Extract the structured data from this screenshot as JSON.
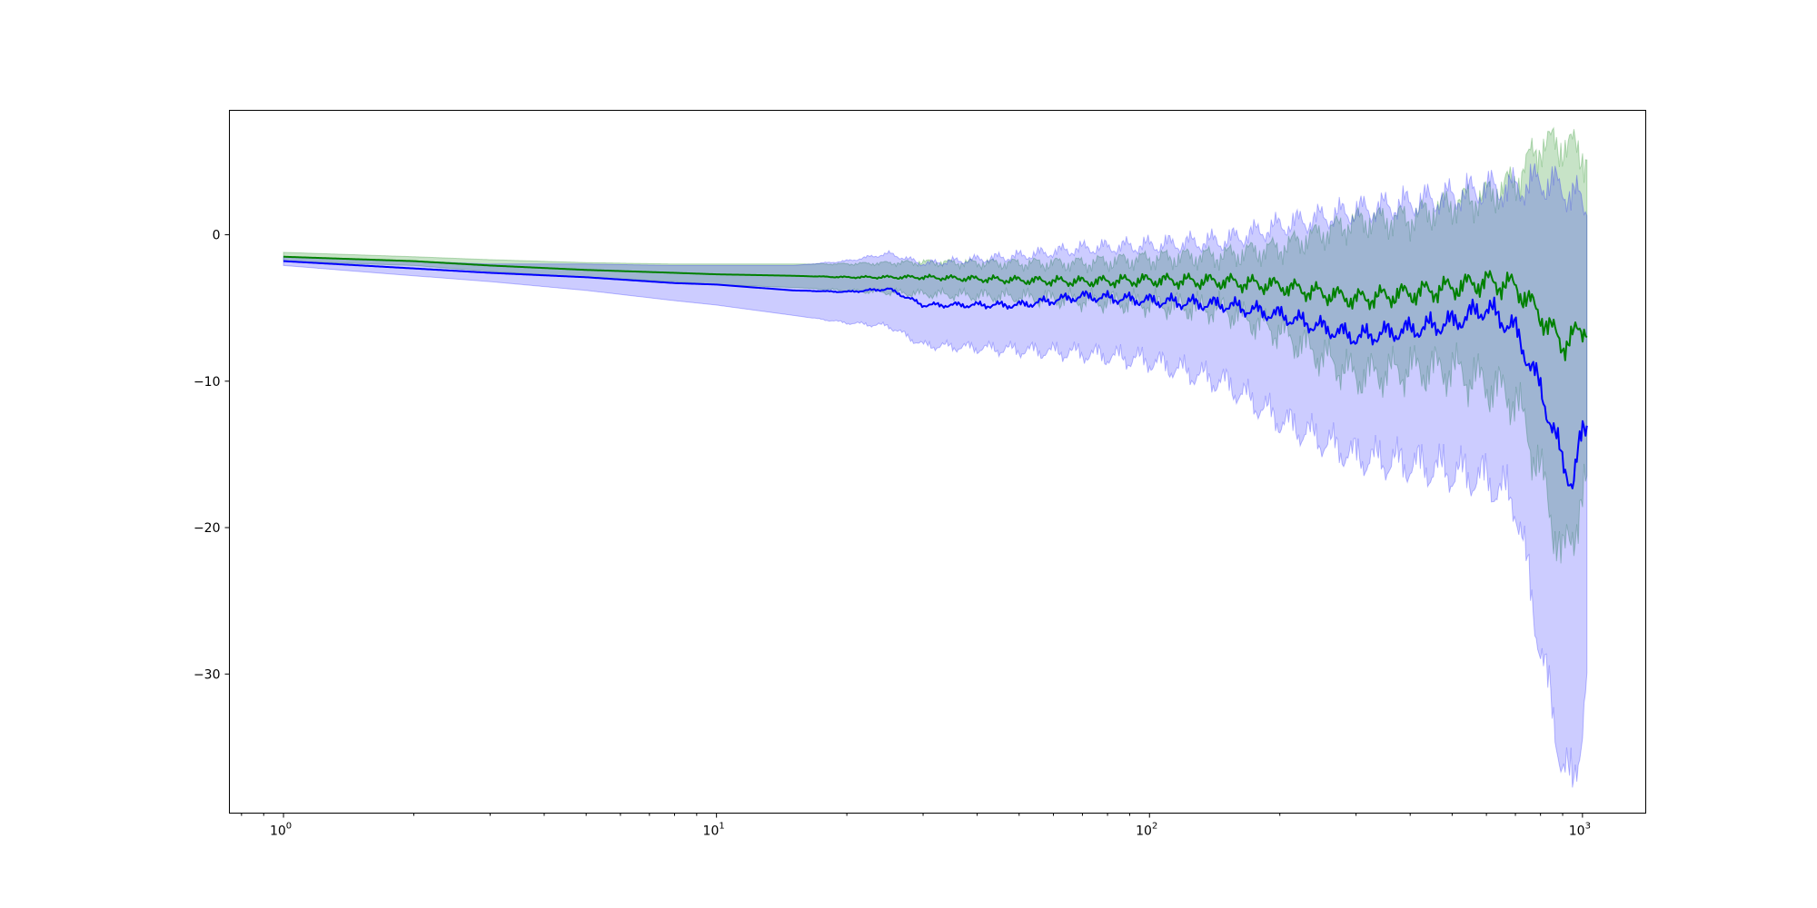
{
  "chart_data": {
    "type": "line",
    "title": "",
    "xlabel": "",
    "ylabel": "",
    "xscale": "log",
    "xlim": [
      0.75,
      1400
    ],
    "ylim": [
      -39.5,
      8.5
    ],
    "grid": false,
    "legend": null,
    "x_ticks": [
      {
        "value": 1,
        "base": "10",
        "exp": "0"
      },
      {
        "value": 10,
        "base": "10",
        "exp": "1"
      },
      {
        "value": 100,
        "base": "10",
        "exp": "2"
      },
      {
        "value": 1000,
        "base": "10",
        "exp": "3"
      }
    ],
    "y_ticks": [
      {
        "value": 0,
        "label": "0"
      },
      {
        "value": -10,
        "label": "−10"
      },
      {
        "value": -20,
        "label": "−20"
      },
      {
        "value": -30,
        "label": "−30"
      }
    ],
    "series": [
      {
        "color": "#008000",
        "band_color": "#008000",
        "band_opacity": 0.22,
        "points": [
          {
            "x": 1,
            "y": -1.5,
            "lo": -1.8,
            "hi": -1.2
          },
          {
            "x": 2,
            "y": -1.8,
            "lo": -2.1,
            "hi": -1.5
          },
          {
            "x": 3,
            "y": -2.1,
            "lo": -2.5,
            "hi": -1.7
          },
          {
            "x": 5,
            "y": -2.4,
            "lo": -2.9,
            "hi": -1.9
          },
          {
            "x": 8,
            "y": -2.6,
            "lo": -3.2,
            "hi": -2.0
          },
          {
            "x": 10,
            "y": -2.7,
            "lo": -3.4,
            "hi": -2.0
          },
          {
            "x": 15,
            "y": -2.8,
            "lo": -3.6,
            "hi": -2.0
          },
          {
            "x": 20,
            "y": -2.9,
            "lo": -3.8,
            "hi": -2.0
          },
          {
            "x": 30,
            "y": -2.9,
            "lo": -4.0,
            "hi": -1.9
          },
          {
            "x": 50,
            "y": -3.1,
            "lo": -4.2,
            "hi": -2.0
          },
          {
            "x": 70,
            "y": -3.2,
            "lo": -4.4,
            "hi": -2.0
          },
          {
            "x": 100,
            "y": -3.1,
            "lo": -4.6,
            "hi": -1.7
          },
          {
            "x": 150,
            "y": -3.2,
            "lo": -5.0,
            "hi": -1.5
          },
          {
            "x": 200,
            "y": -3.5,
            "lo": -6.5,
            "hi": -1.0
          },
          {
            "x": 300,
            "y": -4.4,
            "lo": -9.5,
            "hi": 0.8
          },
          {
            "x": 400,
            "y": -4.0,
            "lo": -9.0,
            "hi": 1.0
          },
          {
            "x": 500,
            "y": -3.6,
            "lo": -9.0,
            "hi": 2.0
          },
          {
            "x": 600,
            "y": -3.2,
            "lo": -10.0,
            "hi": 2.5
          },
          {
            "x": 700,
            "y": -3.5,
            "lo": -11.0,
            "hi": 3.5
          },
          {
            "x": 800,
            "y": -5.5,
            "lo": -16.0,
            "hi": 6.0
          },
          {
            "x": 900,
            "y": -7.5,
            "lo": -22.0,
            "hi": 6.0
          },
          {
            "x": 1000,
            "y": -6.5,
            "lo": -18.0,
            "hi": 5.5
          },
          {
            "x": 1024,
            "y": -6.0,
            "lo": -17.0,
            "hi": 5.0
          }
        ]
      },
      {
        "color": "#0000ff",
        "band_color": "#0000ff",
        "band_opacity": 0.2,
        "points": [
          {
            "x": 1,
            "y": -1.8,
            "lo": -2.1,
            "hi": -1.5
          },
          {
            "x": 2,
            "y": -2.3,
            "lo": -2.8,
            "hi": -1.8
          },
          {
            "x": 3,
            "y": -2.6,
            "lo": -3.2,
            "hi": -2.0
          },
          {
            "x": 5,
            "y": -2.9,
            "lo": -3.8,
            "hi": -2.0
          },
          {
            "x": 8,
            "y": -3.3,
            "lo": -4.5,
            "hi": -2.1
          },
          {
            "x": 10,
            "y": -3.4,
            "lo": -4.8,
            "hi": -2.1
          },
          {
            "x": 15,
            "y": -3.8,
            "lo": -5.5,
            "hi": -2.1
          },
          {
            "x": 20,
            "y": -3.9,
            "lo": -6.0,
            "hi": -1.8
          },
          {
            "x": 25,
            "y": -3.7,
            "lo": -6.2,
            "hi": -1.3
          },
          {
            "x": 30,
            "y": -4.8,
            "lo": -7.5,
            "hi": -2.0
          },
          {
            "x": 50,
            "y": -4.8,
            "lo": -7.8,
            "hi": -1.5
          },
          {
            "x": 70,
            "y": -4.2,
            "lo": -8.0,
            "hi": -1.0
          },
          {
            "x": 100,
            "y": -4.5,
            "lo": -8.5,
            "hi": -0.8
          },
          {
            "x": 150,
            "y": -4.8,
            "lo": -10.0,
            "hi": -0.5
          },
          {
            "x": 200,
            "y": -5.5,
            "lo": -12.5,
            "hi": 0.5
          },
          {
            "x": 300,
            "y": -7.0,
            "lo": -15.0,
            "hi": 1.5
          },
          {
            "x": 400,
            "y": -6.5,
            "lo": -15.5,
            "hi": 2.0
          },
          {
            "x": 500,
            "y": -6.0,
            "lo": -16.0,
            "hi": 2.5
          },
          {
            "x": 600,
            "y": -5.0,
            "lo": -16.5,
            "hi": 3.0
          },
          {
            "x": 700,
            "y": -6.5,
            "lo": -18.0,
            "hi": 3.0
          },
          {
            "x": 800,
            "y": -10.5,
            "lo": -28.0,
            "hi": 3.5
          },
          {
            "x": 900,
            "y": -15.5,
            "lo": -36.0,
            "hi": 3.0
          },
          {
            "x": 950,
            "y": -17.0,
            "lo": -37.5,
            "hi": 2.5
          },
          {
            "x": 1000,
            "y": -13.5,
            "lo": -33.0,
            "hi": 2.0
          },
          {
            "x": 1024,
            "y": -13.0,
            "lo": -30.0,
            "hi": 2.0
          }
        ]
      }
    ]
  }
}
